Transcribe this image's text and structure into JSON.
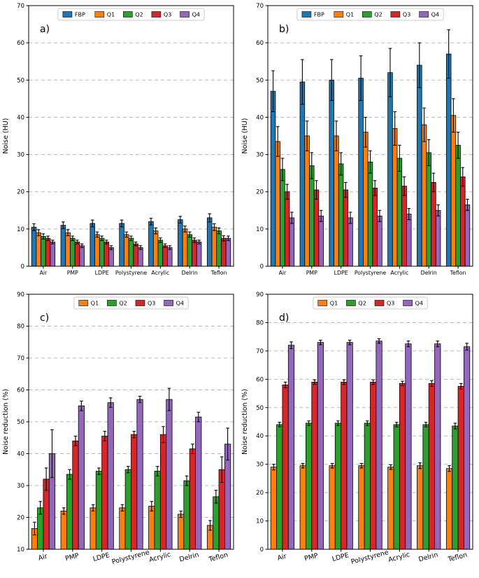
{
  "figure": {
    "background": "#ffffff",
    "grid_color": "#b8b8b8",
    "axis_color": "#000000",
    "legend_border_color": "#cccccc"
  },
  "chart_data": [
    {
      "id": "a",
      "type": "bar",
      "panel_label": "a)",
      "ylabel": "Noise (HU)",
      "ylim": [
        0,
        70
      ],
      "yticks": [
        0,
        10,
        20,
        30,
        40,
        50,
        60,
        70
      ],
      "categories": [
        "Air",
        "PMP",
        "LDPE",
        "Polystyrene",
        "Acrylic",
        "Delrin",
        "Teflon"
      ],
      "xtick_rotation": 0,
      "grid": "dashed-horizontal",
      "legend_position": "top-center",
      "series": [
        {
          "name": "FBP",
          "color": "#1f77b4",
          "values": [
            10.5,
            11.0,
            11.5,
            11.5,
            12.0,
            12.5,
            13.0
          ],
          "errors": [
            0.9,
            0.9,
            0.9,
            0.9,
            0.9,
            0.9,
            1.1
          ]
        },
        {
          "name": "Q1",
          "color": "#ff7f0e",
          "values": [
            9.0,
            9.0,
            8.5,
            8.5,
            9.5,
            10.0,
            10.5
          ],
          "errors": [
            0.8,
            0.8,
            0.7,
            0.7,
            0.8,
            0.8,
            0.9
          ]
        },
        {
          "name": "Q2",
          "color": "#2ca02c",
          "values": [
            8.0,
            7.5,
            7.5,
            7.5,
            7.0,
            8.5,
            9.5
          ],
          "errors": [
            0.7,
            0.6,
            0.6,
            0.6,
            0.6,
            0.7,
            0.8
          ]
        },
        {
          "name": "Q3",
          "color": "#d62728",
          "values": [
            7.5,
            6.5,
            6.5,
            6.0,
            5.5,
            7.0,
            7.5
          ],
          "errors": [
            0.6,
            0.5,
            0.5,
            0.5,
            0.5,
            0.6,
            0.7
          ]
        },
        {
          "name": "Q4",
          "color": "#9467bd",
          "values": [
            6.5,
            5.5,
            5.0,
            5.0,
            5.0,
            6.5,
            7.5
          ],
          "errors": [
            0.5,
            0.5,
            0.5,
            0.5,
            0.5,
            0.5,
            0.6
          ]
        }
      ]
    },
    {
      "id": "b",
      "type": "bar",
      "panel_label": "b)",
      "ylabel": "Noise (HU)",
      "ylim": [
        0,
        70
      ],
      "yticks": [
        0,
        10,
        20,
        30,
        40,
        50,
        60,
        70
      ],
      "categories": [
        "Air",
        "PMP",
        "LDPE",
        "Polystyrene",
        "Acrylic",
        "Delrin",
        "Teflon"
      ],
      "xtick_rotation": 0,
      "grid": "dashed-horizontal",
      "legend_position": "top-center",
      "series": [
        {
          "name": "FBP",
          "color": "#1f77b4",
          "values": [
            47.0,
            49.5,
            50.0,
            50.5,
            52.0,
            54.0,
            57.0
          ],
          "errors": [
            5.5,
            6.0,
            5.5,
            6.0,
            6.5,
            6.0,
            6.5
          ]
        },
        {
          "name": "Q1",
          "color": "#ff7f0e",
          "values": [
            33.5,
            35.0,
            35.0,
            36.0,
            37.0,
            38.0,
            40.5
          ],
          "errors": [
            4.0,
            4.0,
            4.0,
            4.0,
            4.5,
            4.5,
            4.5
          ]
        },
        {
          "name": "Q2",
          "color": "#2ca02c",
          "values": [
            26.0,
            27.0,
            27.5,
            28.0,
            29.0,
            30.5,
            32.5
          ],
          "errors": [
            3.0,
            3.5,
            3.0,
            3.0,
            3.5,
            3.5,
            3.5
          ]
        },
        {
          "name": "Q3",
          "color": "#d62728",
          "values": [
            20.0,
            20.5,
            20.5,
            21.0,
            21.5,
            22.5,
            24.0
          ],
          "errors": [
            2.0,
            2.5,
            2.0,
            2.0,
            2.5,
            2.5,
            2.5
          ]
        },
        {
          "name": "Q4",
          "color": "#9467bd",
          "values": [
            13.0,
            13.5,
            13.0,
            13.5,
            14.0,
            15.0,
            16.5
          ],
          "errors": [
            1.5,
            1.5,
            1.5,
            1.5,
            1.5,
            1.5,
            1.5
          ]
        }
      ]
    },
    {
      "id": "c",
      "type": "bar",
      "panel_label": "c)",
      "ylabel": "Noise reduction (%)",
      "ylim": [
        10,
        90
      ],
      "yticks": [
        10,
        20,
        30,
        40,
        50,
        60,
        70,
        80,
        90
      ],
      "categories": [
        "Air",
        "PMP",
        "LDPE",
        "Polystyrene",
        "Acrylic",
        "Delrin",
        "Teflon"
      ],
      "xtick_rotation": 15,
      "grid": "dashed-horizontal",
      "legend_position": "top-center",
      "series": [
        {
          "name": "Q1",
          "color": "#ff7f0e",
          "values": [
            16.5,
            22.0,
            23.0,
            23.0,
            23.5,
            21.0,
            17.5
          ],
          "errors": [
            2.0,
            1.0,
            1.0,
            1.0,
            1.5,
            1.0,
            1.5
          ]
        },
        {
          "name": "Q2",
          "color": "#2ca02c",
          "values": [
            23.0,
            33.5,
            34.5,
            35.0,
            34.5,
            31.5,
            26.5
          ],
          "errors": [
            2.0,
            1.5,
            1.0,
            1.0,
            1.5,
            1.5,
            2.0
          ]
        },
        {
          "name": "Q3",
          "color": "#d62728",
          "values": [
            32.0,
            44.0,
            45.5,
            46.0,
            46.0,
            41.5,
            35.0
          ],
          "errors": [
            3.5,
            1.5,
            1.5,
            1.0,
            2.5,
            1.5,
            4.0
          ]
        },
        {
          "name": "Q4",
          "color": "#9467bd",
          "values": [
            40.0,
            55.0,
            56.0,
            57.0,
            57.0,
            51.5,
            43.0
          ],
          "errors": [
            7.5,
            1.5,
            1.5,
            1.0,
            3.5,
            1.5,
            5.0
          ]
        }
      ]
    },
    {
      "id": "d",
      "type": "bar",
      "panel_label": "d)",
      "ylabel": "Noise reduction (%)",
      "ylim": [
        0,
        90
      ],
      "yticks": [
        0,
        10,
        20,
        30,
        40,
        50,
        60,
        70,
        80,
        90
      ],
      "categories": [
        "Air",
        "PMP",
        "LDPE",
        "Polystyrene",
        "Acrylic",
        "Delrin",
        "Teflon"
      ],
      "xtick_rotation": 15,
      "grid": "dashed-horizontal",
      "legend_position": "top-center",
      "series": [
        {
          "name": "Q1",
          "color": "#ff7f0e",
          "values": [
            29.0,
            29.5,
            29.5,
            29.5,
            29.0,
            29.5,
            28.5
          ],
          "errors": [
            1.0,
            0.8,
            0.8,
            0.8,
            0.8,
            1.0,
            1.0
          ]
        },
        {
          "name": "Q2",
          "color": "#2ca02c",
          "values": [
            44.0,
            44.5,
            44.5,
            44.5,
            44.0,
            44.0,
            43.5
          ],
          "errors": [
            0.8,
            0.8,
            0.8,
            0.8,
            0.8,
            0.8,
            1.0
          ]
        },
        {
          "name": "Q3",
          "color": "#d62728",
          "values": [
            58.0,
            59.0,
            59.0,
            59.0,
            58.5,
            58.5,
            57.5
          ],
          "errors": [
            1.0,
            0.8,
            0.8,
            0.8,
            0.8,
            1.0,
            1.0
          ]
        },
        {
          "name": "Q4",
          "color": "#9467bd",
          "values": [
            72.0,
            73.0,
            73.0,
            73.5,
            72.5,
            72.5,
            71.5
          ],
          "errors": [
            1.2,
            0.8,
            0.8,
            0.8,
            1.0,
            1.0,
            1.2
          ]
        }
      ]
    }
  ]
}
